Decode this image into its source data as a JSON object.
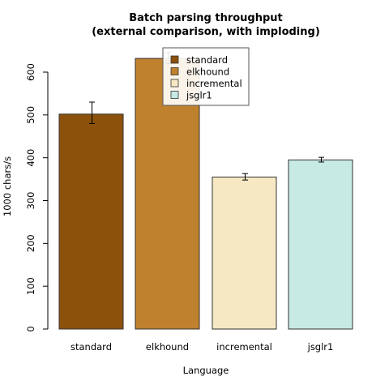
{
  "chart_data": {
    "type": "bar",
    "title": "Batch parsing throughput",
    "subtitle": "(external comparison, with imploding)",
    "xlabel": "Language",
    "ylabel": "1000 chars/s",
    "ylim": [
      0,
      650
    ],
    "yticks": [
      0,
      100,
      200,
      300,
      400,
      500,
      600
    ],
    "grid": false,
    "legend_position": "top",
    "categories": [
      "standard",
      "elkhound",
      "incremental",
      "jsglr1"
    ],
    "values": [
      502,
      632,
      355,
      395
    ],
    "errors": [
      [
        480,
        530
      ],
      [
        620,
        646
      ],
      [
        348,
        363
      ],
      [
        390,
        401
      ]
    ],
    "colors": [
      "#8c510a",
      "#bf812d",
      "#f6e8c3",
      "#c7eae5"
    ],
    "legend": [
      "standard",
      "elkhound",
      "incremental",
      "jsglr1"
    ]
  }
}
